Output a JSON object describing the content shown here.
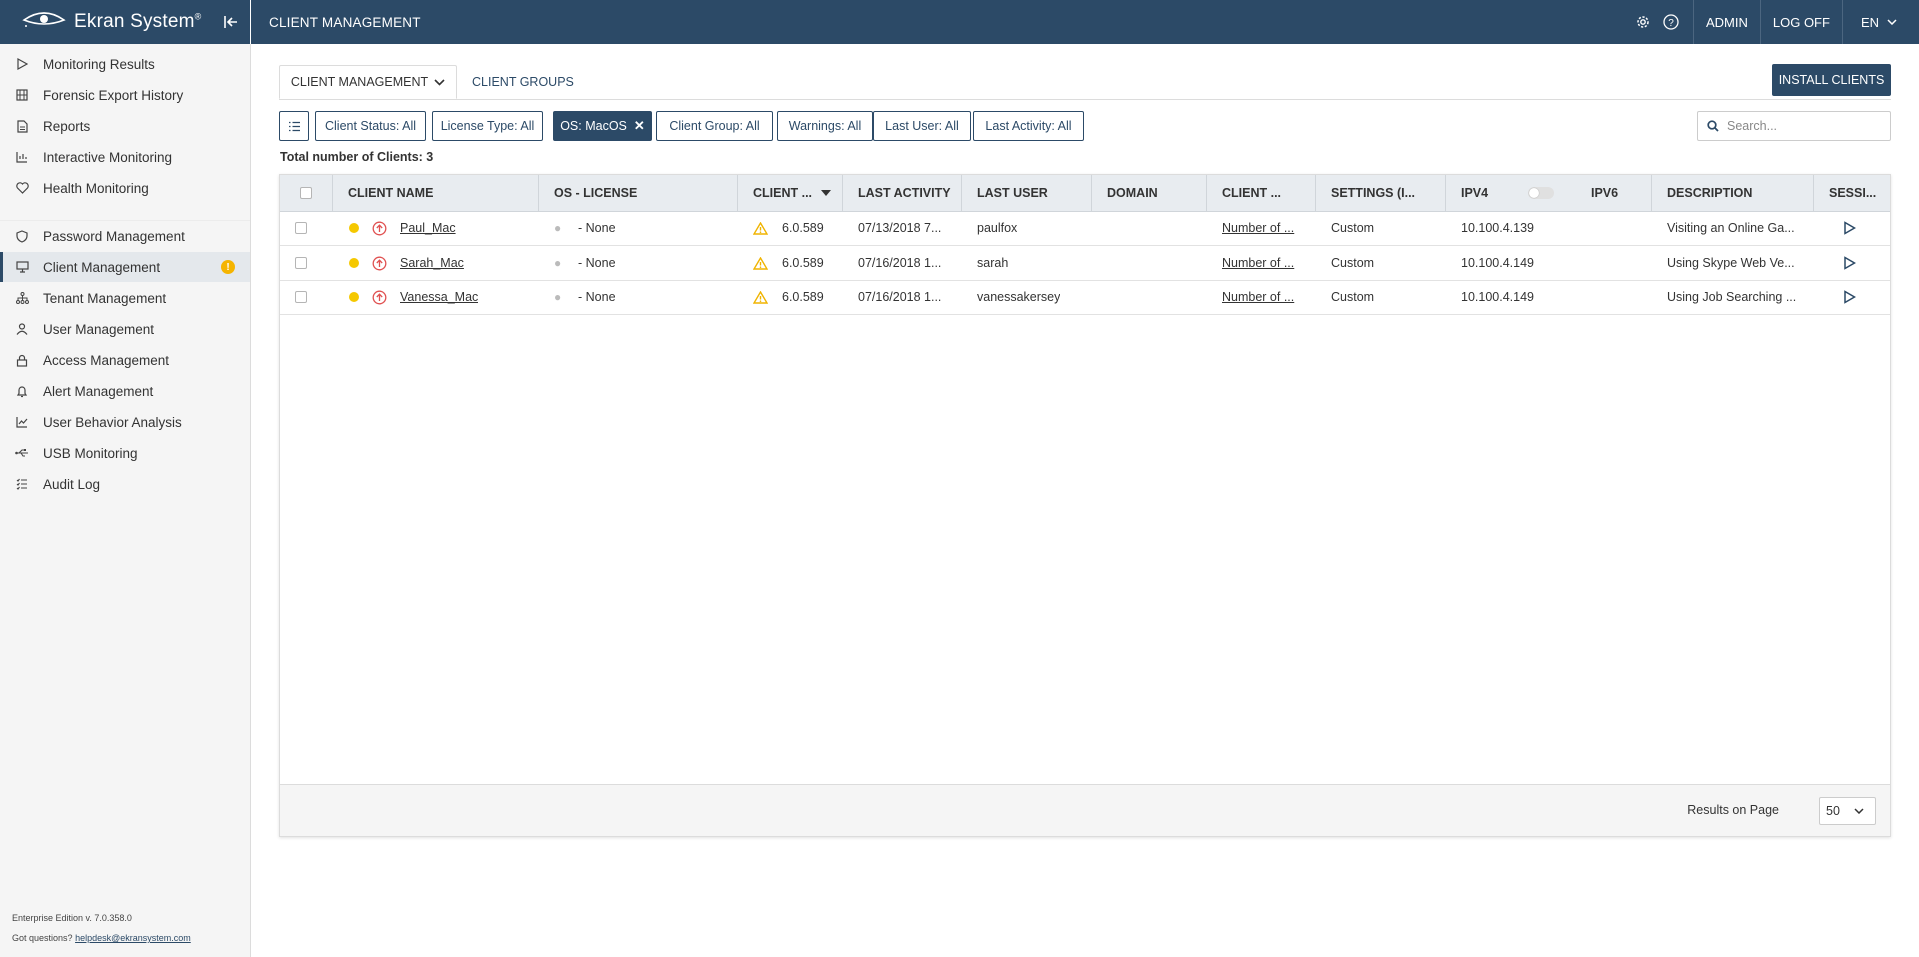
{
  "brand": {
    "name": "Ekran System"
  },
  "header": {
    "title": "CLIENT MANAGEMENT",
    "admin_label": "ADMIN",
    "logoff_label": "LOG OFF",
    "language": "EN"
  },
  "sidebar": {
    "items": [
      {
        "label": "Monitoring Results",
        "icon": "play-icon"
      },
      {
        "label": "Forensic Export History",
        "icon": "film-icon"
      },
      {
        "label": "Reports",
        "icon": "document-icon"
      },
      {
        "label": "Interactive Monitoring",
        "icon": "bar-chart-icon"
      },
      {
        "label": "Health Monitoring",
        "icon": "heart-icon"
      },
      {
        "label": "Password Management",
        "icon": "shield-icon"
      },
      {
        "label": "Client Management",
        "icon": "monitor-icon",
        "active": true,
        "badge": "!"
      },
      {
        "label": "Tenant Management",
        "icon": "hierarchy-icon"
      },
      {
        "label": "User Management",
        "icon": "user-icon"
      },
      {
        "label": "Access Management",
        "icon": "lock-icon"
      },
      {
        "label": "Alert Management",
        "icon": "bell-icon"
      },
      {
        "label": "User Behavior Analysis",
        "icon": "trend-icon"
      },
      {
        "label": "USB Monitoring",
        "icon": "usb-icon"
      },
      {
        "label": "Audit Log",
        "icon": "checklist-icon"
      }
    ],
    "footer": {
      "version": "Enterprise Edition v. 7.0.358.0",
      "help_prefix": "Got questions?",
      "help_email": "helpdesk@ekransystem.com"
    }
  },
  "tabs": {
    "client_management": "CLIENT MANAGEMENT",
    "client_groups": "CLIENT GROUPS"
  },
  "install_button": "INSTALL CLIENTS",
  "filters": [
    {
      "label": "Client Status: All"
    },
    {
      "label": "License Type: All"
    },
    {
      "label": "OS: MacOS",
      "active": true
    },
    {
      "label": "Client Group: All"
    },
    {
      "label": "Warnings: All"
    },
    {
      "label": "Last User: All"
    },
    {
      "label": "Last Activity: All"
    }
  ],
  "search": {
    "placeholder": "Search..."
  },
  "total": "Total number of Clients: 3",
  "table": {
    "columns": [
      "CLIENT NAME",
      "OS - LICENSE",
      "CLIENT ...",
      "LAST ACTIVITY",
      "LAST USER",
      "DOMAIN",
      "CLIENT ...",
      "SETTINGS (I...",
      "IPV4",
      "IPV6",
      "DESCRIPTION",
      "SESSI..."
    ],
    "rows": [
      {
        "name": "Paul_Mac",
        "license": "- None",
        "version": "6.0.589",
        "last_activity": "07/13/2018 7...",
        "last_user": "paulfox",
        "domain": "",
        "client_info": "Number of ...",
        "settings": "Custom",
        "ipv4": "10.100.4.139",
        "ipv6": "",
        "description": "Visiting an Online Ga..."
      },
      {
        "name": "Sarah_Mac",
        "license": "- None",
        "version": "6.0.589",
        "last_activity": "07/16/2018 1...",
        "last_user": "sarah",
        "domain": "",
        "client_info": "Number of ...",
        "settings": "Custom",
        "ipv4": "10.100.4.149",
        "ipv6": "",
        "description": "Using Skype Web Ve..."
      },
      {
        "name": "Vanessa_Mac",
        "license": "- None",
        "version": "6.0.589",
        "last_activity": "07/16/2018 1...",
        "last_user": "vanessakersey",
        "domain": "",
        "client_info": "Number of ...",
        "settings": "Custom",
        "ipv4": "10.100.4.149",
        "ipv6": "",
        "description": "Using Job Searching ..."
      }
    ]
  },
  "pagination": {
    "label": "Results on Page",
    "value": "50"
  },
  "colors": {
    "primary": "#2c4a67",
    "warning": "#f5b400",
    "status_online": "#f5c800",
    "update_icon": "#e05050"
  }
}
